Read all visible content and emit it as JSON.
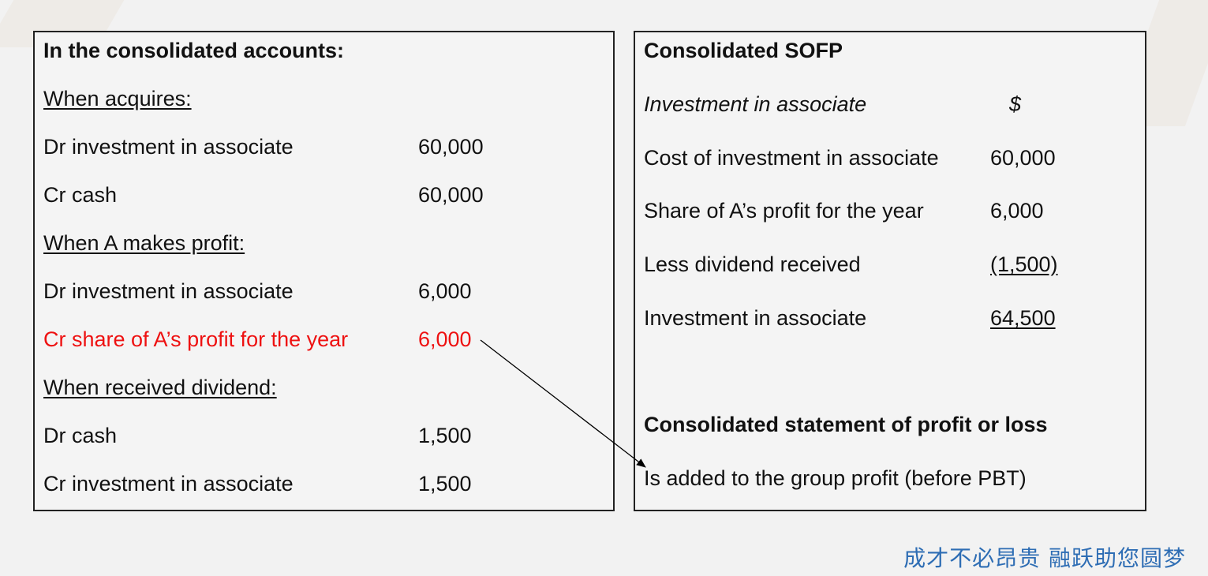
{
  "left": {
    "heading": "In the consolidated accounts:",
    "section_acquire": "When acquires:",
    "acq_dr_label": "Dr investment in associate",
    "acq_dr_amount": "60,000",
    "acq_cr_label": "Cr cash",
    "acq_cr_amount": "60,000",
    "section_profit": "When A makes profit:",
    "profit_dr_label": "Dr investment in associate",
    "profit_dr_amount": "6,000",
    "profit_cr_label": "Cr share of A’s profit for the year",
    "profit_cr_amount": "6,000",
    "section_dividend": "When received dividend:",
    "div_dr_label": "Dr cash",
    "div_dr_amount": "1,500",
    "div_cr_label": "Cr investment in associate",
    "div_cr_amount": "1,500"
  },
  "right": {
    "sofp_heading": "Consolidated SOFP",
    "inv_heading": "Investment in associate",
    "currency": "$",
    "rows": [
      {
        "label": "Cost of investment in associate",
        "amount": "60,000"
      },
      {
        "label": "Share of A’s profit for the year",
        "amount": "6,000"
      },
      {
        "label": "Less dividend received",
        "amount": "(1,500)"
      },
      {
        "label": "Investment in associate",
        "amount": "64,500"
      }
    ],
    "pl_heading": "Consolidated statement of profit or loss",
    "pl_note": "Is added to the group profit (before PBT)"
  },
  "slogan": "成才不必昂贵  融跃助您圆梦",
  "colors": {
    "highlight": "#ee1111",
    "slogan": "#2e6db4"
  }
}
